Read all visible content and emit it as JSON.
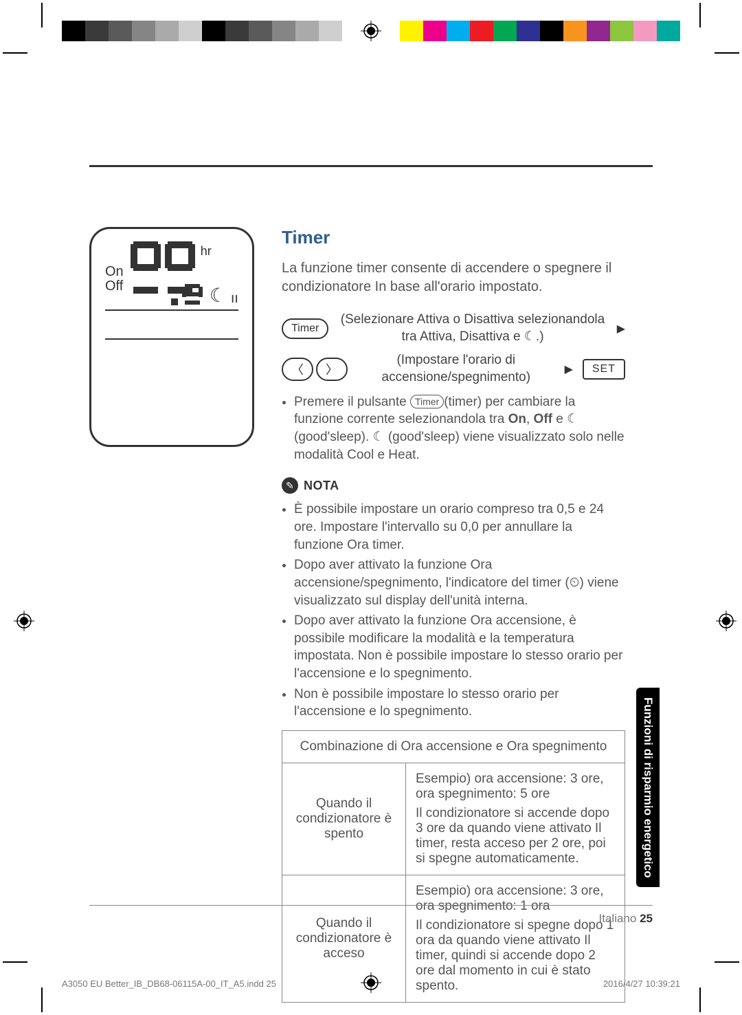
{
  "colorbars": {
    "left": [
      "#000000",
      "#3a3a3a",
      "#5a5a5a",
      "#858585",
      "#aaaaaa",
      "#cfcfcf",
      "#000000",
      "#3a3a3a",
      "#5a5a5a",
      "#858585",
      "#aaaaaa",
      "#cfcfcf"
    ],
    "right": [
      "#fff200",
      "#ec008c",
      "#00aeef",
      "#ed1c24",
      "#00a651",
      "#2e3192",
      "#000000",
      "#f7941d",
      "#92278f",
      "#8dc63f",
      "#f49ac1",
      "#00a99d"
    ]
  },
  "display": {
    "on": "On",
    "off": "Off",
    "hr": "hr"
  },
  "section": {
    "title": "Timer",
    "intro": "La funzione timer consente di accendere o spegnere il condizionatore In base all'orario impostato."
  },
  "steps": {
    "timer_btn": "Timer",
    "step1": "(Selezionare Attiva o Disattiva selezionandola tra Attiva, Disattiva e ☾.)",
    "step2": "(Impostare l'orario di accensione/spegnimento)",
    "set_btn": "SET"
  },
  "timer_note": {
    "prefix": "Premere il pulsante ",
    "btn": "Timer",
    "mid": "(timer) per cambiare la funzione corrente selezionandola tra ",
    "on": "On",
    "off": "Off",
    "gs": " (good'sleep). ☾ (good'sleep) viene visualizzato solo nelle modalità Cool e Heat.",
    "e": " e ☾"
  },
  "nota_label": "NOTA",
  "nota": [
    "È possibile impostare un orario compreso tra 0,5 e 24 ore. Impostare l'intervallo su 0,0 per annullare la funzione Ora timer.",
    "Dopo aver attivato la funzione Ora accensione/spegnimento, l'indicatore del timer (⏲) viene visualizzato sul display dell'unità interna.",
    "Dopo aver attivato la funzione Ora accensione, è possibile modificare la modalità e la temperatura impostata. Non è possibile impostare lo stesso orario per l'accensione e lo spegnimento.",
    "Non è possibile impostare lo stesso orario per l'accensione e lo spegnimento."
  ],
  "table": {
    "header": "Combinazione di Ora accensione e Ora spegnimento",
    "r1": {
      "left": "Quando il condizionatore è spento",
      "ex": "Esempio) ora accensione: 3 ore, ora spegnimento: 5 ore",
      "body": "Il condizionatore si accende dopo 3 ore da quando viene attivato Il timer, resta acceso per 2 ore, poi si spegne automaticamente."
    },
    "r2": {
      "left": "Quando il condizionatore è acceso",
      "ex": "Esempio) ora accensione: 3 ore, ora spegnimento: 1 ora",
      "body": "Il condizionatore si spegne dopo 1 ora da quando viene attivato Il timer, quindi si accende dopo 2 ore dal momento in cui è stato spento."
    }
  },
  "sidetab": "Funzioni di risparmio energetico",
  "page": {
    "lang": "Italiano",
    "num": "25"
  },
  "footer": {
    "file": "A3050 EU Better_IB_DB68-06115A-00_IT_A5.indd   25",
    "date": "2016/4/27   10:39:21"
  }
}
